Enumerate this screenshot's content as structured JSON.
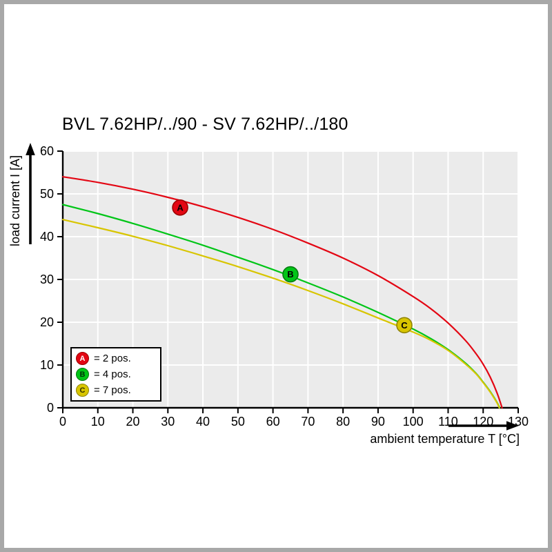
{
  "title": "BVL 7.62HP/../90 - SV 7.62HP/../180",
  "colors": {
    "plot_bg": "#ebebeb",
    "grid": "#ffffff",
    "axis": "#000000",
    "red": "#e30613",
    "green": "#00c517",
    "yellow": "#d8c500"
  },
  "axes": {
    "x": {
      "label": "ambient temperature T [°C]",
      "min": 0,
      "max": 130,
      "step": 10
    },
    "y": {
      "label": "load current I [A]",
      "min": 0,
      "max": 60,
      "step": 10
    }
  },
  "legend": {
    "items": [
      {
        "letter": "A",
        "label": "= 2 pos.",
        "color": "#e30613",
        "border": "#9b0000",
        "text": "#ffffff"
      },
      {
        "letter": "B",
        "label": "= 4 pos.",
        "color": "#00c517",
        "border": "#007a0e",
        "text": "#00330a"
      },
      {
        "letter": "C",
        "label": "= 7 pos.",
        "color": "#d8c500",
        "border": "#8f8300",
        "text": "#332f00"
      }
    ]
  },
  "chart_data": {
    "type": "line",
    "title": "BVL 7.62HP/../90 - SV 7.62HP/../180",
    "xlabel": "ambient temperature T [°C]",
    "ylabel": "load current I [A]",
    "xlim": [
      0,
      130
    ],
    "ylim": [
      0,
      60
    ],
    "x_tick_step": 10,
    "y_tick_step": 10,
    "grid": true,
    "legend_position": "bottom-left",
    "series": [
      {
        "name": "A = 2 pos.",
        "letter": "A",
        "color": "#e30613",
        "border": "#9b0000",
        "marker_text": "#ffffff",
        "marker_at": [
          33.5,
          46.8
        ],
        "points": [
          [
            0,
            54
          ],
          [
            10,
            52.7
          ],
          [
            20,
            51.1
          ],
          [
            30,
            49.2
          ],
          [
            40,
            47.0
          ],
          [
            50,
            44.5
          ],
          [
            60,
            41.7
          ],
          [
            70,
            38.5
          ],
          [
            80,
            35.0
          ],
          [
            90,
            30.9
          ],
          [
            100,
            26.0
          ],
          [
            105,
            23.2
          ],
          [
            110,
            19.8
          ],
          [
            115,
            15.7
          ],
          [
            118,
            12.6
          ],
          [
            120,
            10.2
          ],
          [
            122,
            7.2
          ],
          [
            124,
            3.4
          ],
          [
            125.4,
            0
          ]
        ]
      },
      {
        "name": "B = 4 pos.",
        "letter": "B",
        "color": "#00c517",
        "border": "#007a0e",
        "marker_text": "#00330a",
        "marker_at": [
          65,
          31.2
        ],
        "points": [
          [
            0,
            47.5
          ],
          [
            10,
            45.4
          ],
          [
            20,
            43.1
          ],
          [
            30,
            40.6
          ],
          [
            40,
            38.0
          ],
          [
            50,
            35.2
          ],
          [
            60,
            32.3
          ],
          [
            70,
            29.2
          ],
          [
            80,
            25.9
          ],
          [
            90,
            22.3
          ],
          [
            100,
            18.4
          ],
          [
            105,
            16.2
          ],
          [
            110,
            13.6
          ],
          [
            115,
            10.4
          ],
          [
            118,
            8.0
          ],
          [
            120,
            6.0
          ],
          [
            122,
            3.8
          ],
          [
            124,
            1.2
          ],
          [
            124.7,
            0
          ]
        ]
      },
      {
        "name": "C = 7 pos.",
        "letter": "C",
        "color": "#d8c500",
        "border": "#8f8300",
        "marker_text": "#332f00",
        "marker_at": [
          97.5,
          19.3
        ],
        "points": [
          [
            0,
            44.0
          ],
          [
            10,
            42.1
          ],
          [
            20,
            40.1
          ],
          [
            30,
            37.9
          ],
          [
            40,
            35.5
          ],
          [
            50,
            33.0
          ],
          [
            60,
            30.3
          ],
          [
            70,
            27.4
          ],
          [
            80,
            24.3
          ],
          [
            90,
            21.0
          ],
          [
            100,
            17.7
          ],
          [
            105,
            15.8
          ],
          [
            110,
            13.4
          ],
          [
            115,
            10.2
          ],
          [
            118,
            7.9
          ],
          [
            120,
            5.9
          ],
          [
            122,
            3.7
          ],
          [
            124,
            1.1
          ],
          [
            124.6,
            0
          ]
        ]
      }
    ]
  }
}
